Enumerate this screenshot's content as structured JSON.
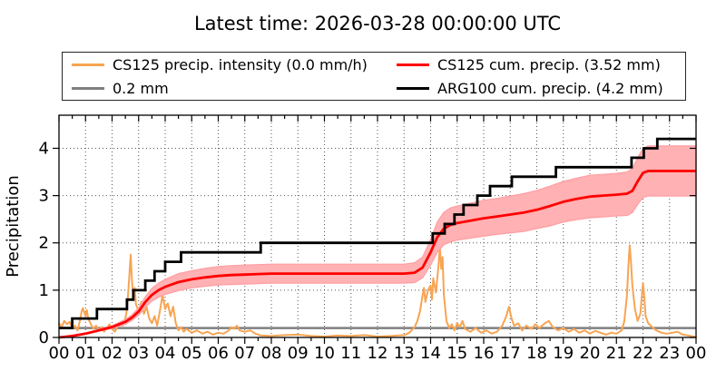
{
  "chart_data": {
    "type": "line",
    "title": "Latest time: 2026-03-28 00:00:00 UTC",
    "xlabel": "",
    "ylabel": "Precipitation",
    "xlim": [
      0,
      24
    ],
    "ylim": [
      0,
      4.7
    ],
    "x_major_ticks": [
      0,
      1,
      2,
      3,
      4,
      5,
      6,
      7,
      8,
      9,
      10,
      11,
      12,
      13,
      14,
      15,
      16,
      17,
      18,
      19,
      20,
      21,
      22,
      23,
      24
    ],
    "x_ticklabels": [
      "00",
      "01",
      "02",
      "03",
      "04",
      "05",
      "06",
      "07",
      "08",
      "09",
      "10",
      "11",
      "12",
      "13",
      "14",
      "15",
      "16",
      "17",
      "18",
      "19",
      "20",
      "21",
      "22",
      "23",
      "00"
    ],
    "x_minor_step": 0.5,
    "y_major_ticks": [
      0,
      1,
      2,
      3,
      4
    ],
    "y_ticklabels": [
      "0",
      "1",
      "2",
      "3",
      "4"
    ],
    "grid": "dotted",
    "background": "#ffffff",
    "legend": {
      "position": "top",
      "ncol": 2,
      "entries": [
        {
          "label": "CS125 precip. intensity (0.0 mm/h)",
          "color": "#F8A452"
        },
        {
          "label": "0.2 mm",
          "color": "#7F7F7F"
        },
        {
          "label": "CS125 cum. precip. (3.52 mm)",
          "color": "#FF0000"
        },
        {
          "label": "ARG100 cum. precip. (4.2 mm)",
          "color": "#000000"
        }
      ]
    },
    "series": [
      {
        "name": "CS125 precip. intensity",
        "legend_label": "CS125 precip. intensity (0.0 mm/h)",
        "type": "line",
        "color": "#F8A452",
        "width": 2,
        "unit": "mm/h",
        "latest_value": 0.0,
        "points": [
          [
            0,
            0.3
          ],
          [
            0.1,
            0.22
          ],
          [
            0.2,
            0.35
          ],
          [
            0.3,
            0.28
          ],
          [
            0.4,
            0.33
          ],
          [
            0.5,
            0.2
          ],
          [
            0.6,
            0.25
          ],
          [
            0.7,
            0.15
          ],
          [
            0.8,
            0.38
          ],
          [
            0.85,
            0.55
          ],
          [
            0.9,
            0.62
          ],
          [
            1,
            0.45
          ],
          [
            1.05,
            0.58
          ],
          [
            1.1,
            0.4
          ],
          [
            1.2,
            0.28
          ],
          [
            1.3,
            0.18
          ],
          [
            1.4,
            0.25
          ],
          [
            1.5,
            0.15
          ],
          [
            1.6,
            0.22
          ],
          [
            1.7,
            0.12
          ],
          [
            1.8,
            0.2
          ],
          [
            1.9,
            0.28
          ],
          [
            2,
            0.18
          ],
          [
            2.1,
            0.12
          ],
          [
            2.2,
            0.22
          ],
          [
            2.3,
            0.3
          ],
          [
            2.4,
            0.25
          ],
          [
            2.5,
            0.4
          ],
          [
            2.55,
            0.55
          ],
          [
            2.6,
            0.9
          ],
          [
            2.65,
            1.3
          ],
          [
            2.7,
            1.75
          ],
          [
            2.75,
            1.2
          ],
          [
            2.8,
            0.85
          ],
          [
            2.85,
            1.05
          ],
          [
            2.9,
            0.7
          ],
          [
            3,
            0.55
          ],
          [
            3.1,
            0.75
          ],
          [
            3.2,
            0.5
          ],
          [
            3.3,
            0.65
          ],
          [
            3.4,
            0.4
          ],
          [
            3.5,
            0.3
          ],
          [
            3.6,
            0.45
          ],
          [
            3.7,
            0.25
          ],
          [
            3.8,
            0.55
          ],
          [
            3.9,
            0.9
          ],
          [
            4,
            0.6
          ],
          [
            4.1,
            0.72
          ],
          [
            4.2,
            0.45
          ],
          [
            4.3,
            0.65
          ],
          [
            4.4,
            0.3
          ],
          [
            4.5,
            0.15
          ],
          [
            4.6,
            0.22
          ],
          [
            4.7,
            0.12
          ],
          [
            4.8,
            0.18
          ],
          [
            5,
            0.1
          ],
          [
            5.2,
            0.15
          ],
          [
            5.4,
            0.08
          ],
          [
            5.6,
            0.12
          ],
          [
            5.8,
            0.06
          ],
          [
            6,
            0.1
          ],
          [
            6.2,
            0.08
          ],
          [
            6.4,
            0.15
          ],
          [
            6.5,
            0.22
          ],
          [
            6.6,
            0.18
          ],
          [
            6.7,
            0.25
          ],
          [
            6.8,
            0.15
          ],
          [
            7,
            0.12
          ],
          [
            7.2,
            0.15
          ],
          [
            7.4,
            0.08
          ],
          [
            7.6,
            0.04
          ],
          [
            8,
            0.03
          ],
          [
            8.5,
            0.05
          ],
          [
            9,
            0.06
          ],
          [
            9.5,
            0.03
          ],
          [
            10,
            0.02
          ],
          [
            10.5,
            0.04
          ],
          [
            11,
            0.03
          ],
          [
            11.5,
            0.05
          ],
          [
            12,
            0.02
          ],
          [
            12.5,
            0.03
          ],
          [
            13,
            0.05
          ],
          [
            13.2,
            0.1
          ],
          [
            13.4,
            0.22
          ],
          [
            13.5,
            0.35
          ],
          [
            13.6,
            0.55
          ],
          [
            13.7,
            0.9
          ],
          [
            13.75,
            1.05
          ],
          [
            13.8,
            0.75
          ],
          [
            13.9,
            1
          ],
          [
            14,
            1.1
          ],
          [
            14.05,
            0.8
          ],
          [
            14.1,
            1.25
          ],
          [
            14.2,
            0.95
          ],
          [
            14.3,
            1.55
          ],
          [
            14.35,
            1.9
          ],
          [
            14.4,
            1.45
          ],
          [
            14.45,
            1.7
          ],
          [
            14.5,
            0.9
          ],
          [
            14.6,
            0.35
          ],
          [
            14.7,
            0.2
          ],
          [
            14.8,
            0.28
          ],
          [
            14.9,
            0.15
          ],
          [
            15,
            0.3
          ],
          [
            15.1,
            0.22
          ],
          [
            15.2,
            0.35
          ],
          [
            15.3,
            0.18
          ],
          [
            15.5,
            0.12
          ],
          [
            15.7,
            0.2
          ],
          [
            15.9,
            0.1
          ],
          [
            16.1,
            0.15
          ],
          [
            16.3,
            0.08
          ],
          [
            16.5,
            0.12
          ],
          [
            16.7,
            0.25
          ],
          [
            16.85,
            0.45
          ],
          [
            16.95,
            0.65
          ],
          [
            17.05,
            0.4
          ],
          [
            17.15,
            0.25
          ],
          [
            17.3,
            0.3
          ],
          [
            17.45,
            0.15
          ],
          [
            17.6,
            0.25
          ],
          [
            17.8,
            0.18
          ],
          [
            17.95,
            0.28
          ],
          [
            18.1,
            0.2
          ],
          [
            18.3,
            0.3
          ],
          [
            18.45,
            0.35
          ],
          [
            18.6,
            0.22
          ],
          [
            18.8,
            0.15
          ],
          [
            19,
            0.2
          ],
          [
            19.2,
            0.12
          ],
          [
            19.4,
            0.18
          ],
          [
            19.6,
            0.1
          ],
          [
            19.8,
            0.15
          ],
          [
            20,
            0.08
          ],
          [
            20.2,
            0.14
          ],
          [
            20.4,
            0.1
          ],
          [
            20.6,
            0.06
          ],
          [
            20.8,
            0.1
          ],
          [
            21,
            0.08
          ],
          [
            21.2,
            0.15
          ],
          [
            21.3,
            0.35
          ],
          [
            21.4,
            0.9
          ],
          [
            21.45,
            1.5
          ],
          [
            21.5,
            1.95
          ],
          [
            21.55,
            1.6
          ],
          [
            21.6,
            1.1
          ],
          [
            21.7,
            0.6
          ],
          [
            21.8,
            0.35
          ],
          [
            21.9,
            0.5
          ],
          [
            22,
            1.15
          ],
          [
            22.05,
            0.85
          ],
          [
            22.1,
            0.45
          ],
          [
            22.2,
            0.3
          ],
          [
            22.35,
            0.22
          ],
          [
            22.5,
            0.15
          ],
          [
            22.7,
            0.1
          ],
          [
            22.9,
            0.08
          ],
          [
            23.1,
            0.1
          ],
          [
            23.3,
            0.12
          ],
          [
            23.5,
            0.06
          ],
          [
            23.7,
            0.04
          ],
          [
            23.9,
            0.02
          ],
          [
            24,
            0.01
          ]
        ]
      },
      {
        "name": "0.2 mm threshold",
        "legend_label": "0.2 mm",
        "type": "hline",
        "color": "#7F7F7F",
        "width": 2.5,
        "value": 0.2
      },
      {
        "name": "CS125 cum. precip.",
        "legend_label": "CS125 cum. precip. (3.52 mm)",
        "type": "line_with_band",
        "color": "#FF0000",
        "band_fill": "#FFB1B3",
        "band_edge": "#FF9FA3",
        "width": 2.8,
        "unit": "mm",
        "latest_value": 3.52,
        "points_xylu": [
          [
            0,
            0,
            0,
            0
          ],
          [
            0.5,
            0.03,
            0.02,
            0.04
          ],
          [
            1,
            0.08,
            0.07,
            0.09
          ],
          [
            1.5,
            0.15,
            0.13,
            0.17
          ],
          [
            2,
            0.22,
            0.19,
            0.25
          ],
          [
            2.5,
            0.33,
            0.28,
            0.38
          ],
          [
            2.75,
            0.42,
            0.36,
            0.48
          ],
          [
            3,
            0.55,
            0.47,
            0.63
          ],
          [
            3.25,
            0.75,
            0.64,
            0.86
          ],
          [
            3.5,
            0.9,
            0.77,
            1.04
          ],
          [
            3.75,
            1,
            0.85,
            1.15
          ],
          [
            4,
            1.07,
            0.91,
            1.23
          ],
          [
            4.25,
            1.12,
            0.95,
            1.29
          ],
          [
            4.5,
            1.17,
            0.99,
            1.35
          ],
          [
            5,
            1.23,
            1.05,
            1.41
          ],
          [
            5.5,
            1.27,
            1.08,
            1.46
          ],
          [
            6,
            1.3,
            1.11,
            1.5
          ],
          [
            6.5,
            1.32,
            1.12,
            1.52
          ],
          [
            7,
            1.33,
            1.13,
            1.53
          ],
          [
            7.5,
            1.34,
            1.14,
            1.54
          ],
          [
            8,
            1.35,
            1.15,
            1.55
          ],
          [
            9,
            1.35,
            1.15,
            1.55
          ],
          [
            10,
            1.35,
            1.15,
            1.55
          ],
          [
            11,
            1.35,
            1.15,
            1.55
          ],
          [
            12,
            1.35,
            1.15,
            1.55
          ],
          [
            13,
            1.35,
            1.15,
            1.55
          ],
          [
            13.4,
            1.37,
            1.16,
            1.58
          ],
          [
            13.7,
            1.48,
            1.26,
            1.7
          ],
          [
            14,
            1.8,
            1.53,
            2.07
          ],
          [
            14.25,
            2.12,
            1.8,
            2.44
          ],
          [
            14.5,
            2.3,
            1.96,
            2.65
          ],
          [
            14.75,
            2.38,
            2.02,
            2.74
          ],
          [
            15,
            2.42,
            2.06,
            2.78
          ],
          [
            15.5,
            2.47,
            2.1,
            2.84
          ],
          [
            16,
            2.52,
            2.14,
            2.9
          ],
          [
            16.5,
            2.56,
            2.18,
            2.94
          ],
          [
            17,
            2.6,
            2.21,
            2.99
          ],
          [
            17.5,
            2.64,
            2.24,
            3.04
          ],
          [
            18,
            2.7,
            2.3,
            3.11
          ],
          [
            18.5,
            2.78,
            2.36,
            3.2
          ],
          [
            19,
            2.87,
            2.44,
            3.3
          ],
          [
            19.5,
            2.93,
            2.49,
            3.37
          ],
          [
            20,
            2.98,
            2.53,
            3.43
          ],
          [
            20.5,
            3,
            2.55,
            3.45
          ],
          [
            21,
            3.02,
            2.57,
            3.47
          ],
          [
            21.4,
            3.04,
            2.58,
            3.5
          ],
          [
            21.6,
            3.1,
            2.64,
            3.57
          ],
          [
            21.8,
            3.3,
            2.81,
            3.8
          ],
          [
            22,
            3.48,
            2.96,
            4
          ],
          [
            22.2,
            3.52,
            2.99,
            4.05
          ],
          [
            23,
            3.52,
            2.99,
            4.05
          ],
          [
            24,
            3.52,
            2.99,
            4.05
          ]
        ]
      },
      {
        "name": "ARG100 cum. precip.",
        "legend_label": "ARG100 cum. precip. (4.2 mm)",
        "type": "step",
        "color": "#000000",
        "width": 2.8,
        "unit": "mm",
        "step_mm": 0.2,
        "latest_value": 4.2,
        "x_end": 24,
        "steps": [
          [
            0,
            0.2
          ],
          [
            0.5,
            0.4
          ],
          [
            1.43,
            0.6
          ],
          [
            2.56,
            0.8
          ],
          [
            2.8,
            1.0
          ],
          [
            3.25,
            1.2
          ],
          [
            3.6,
            1.4
          ],
          [
            4.0,
            1.6
          ],
          [
            4.6,
            1.8
          ],
          [
            7.6,
            2.0
          ],
          [
            14.08,
            2.2
          ],
          [
            14.53,
            2.4
          ],
          [
            14.9,
            2.6
          ],
          [
            15.24,
            2.8
          ],
          [
            15.76,
            3.0
          ],
          [
            16.24,
            3.2
          ],
          [
            17.06,
            3.4
          ],
          [
            18.72,
            3.6
          ],
          [
            21.57,
            3.8
          ],
          [
            22.03,
            4.0
          ],
          [
            22.54,
            4.2
          ]
        ]
      }
    ]
  }
}
